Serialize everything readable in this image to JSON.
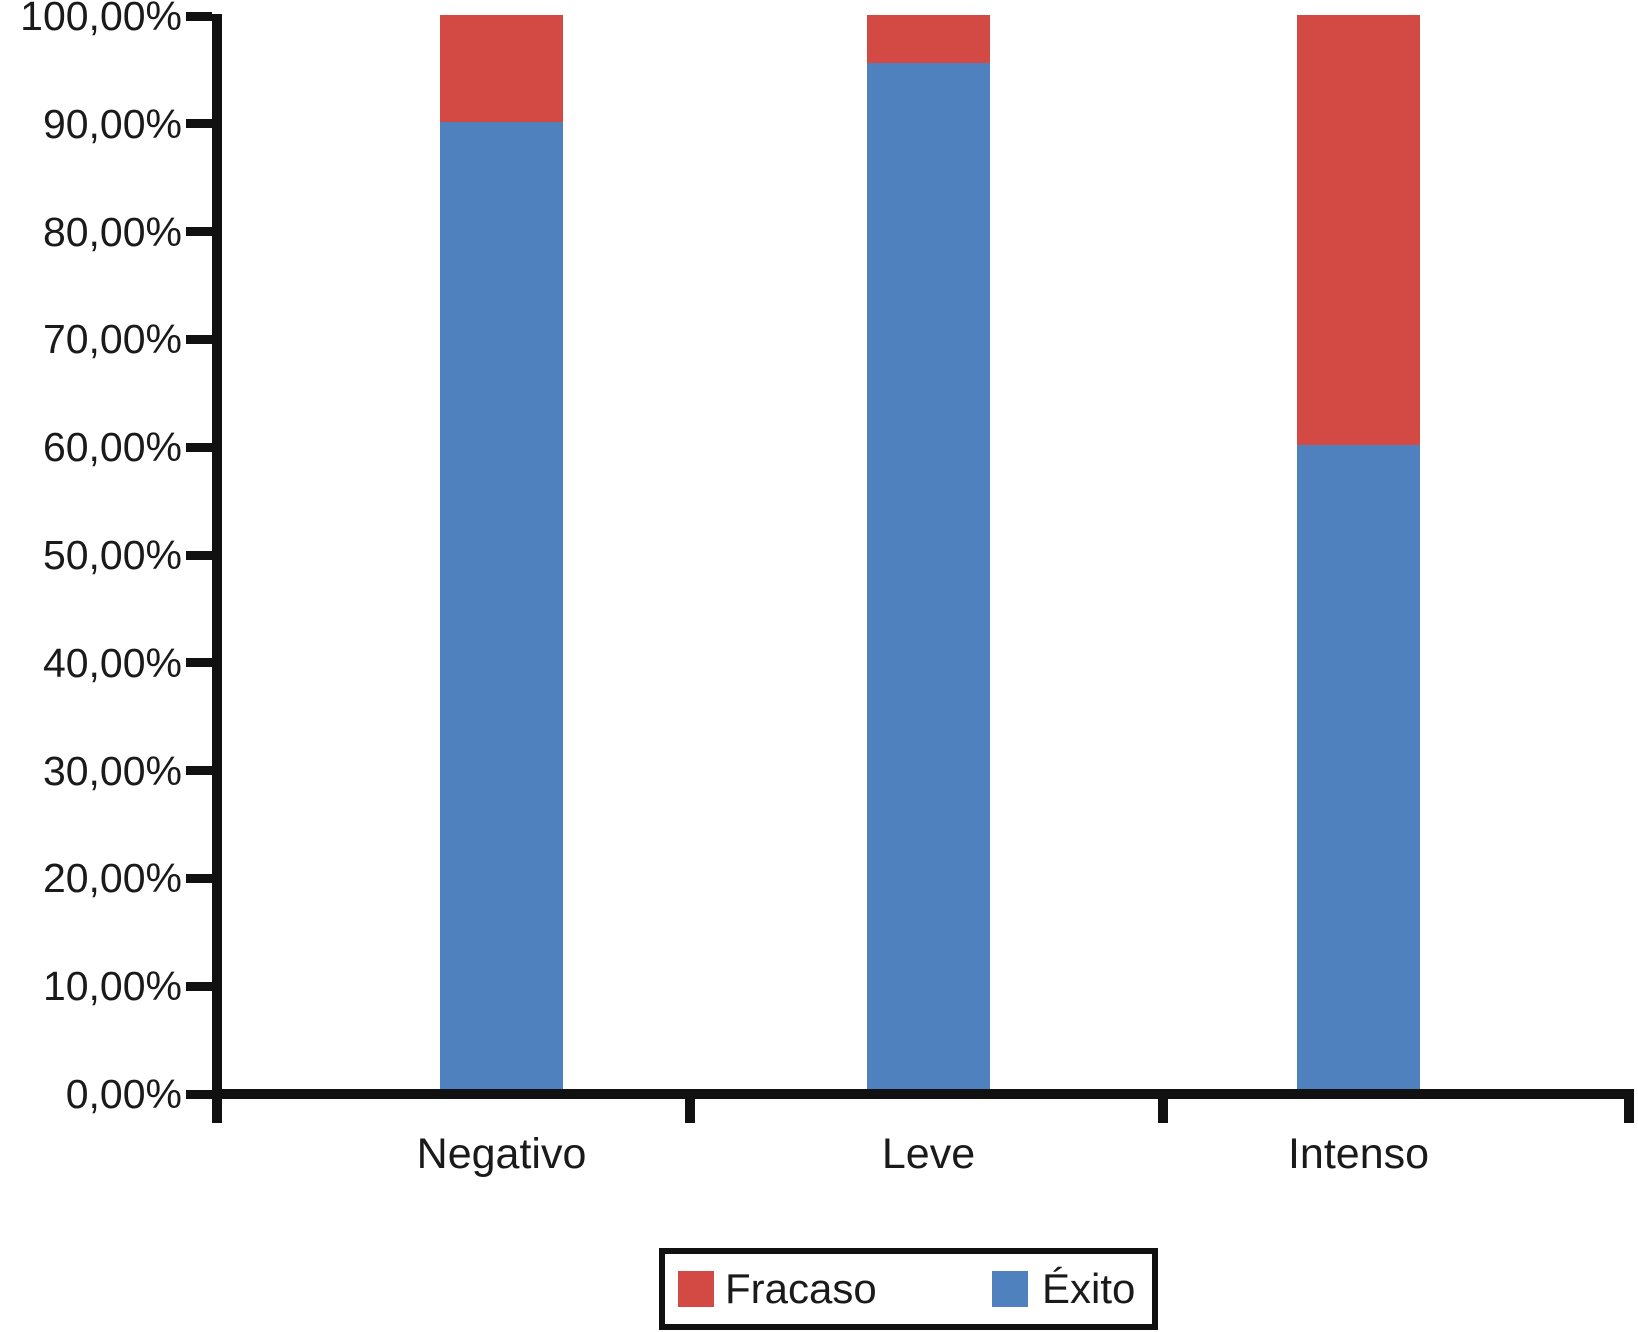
{
  "chart_data": {
    "type": "bar",
    "stacked": true,
    "title": "",
    "xlabel": "",
    "ylabel": "",
    "categories": [
      "Negativo",
      "Leve",
      "Intenso"
    ],
    "series": [
      {
        "name": "Éxito",
        "color": "#4E81BE",
        "values": [
          90.0,
          95.5,
          60.0
        ]
      },
      {
        "name": "Fracaso",
        "color": "#D24A43",
        "values": [
          10.0,
          4.5,
          40.0
        ]
      }
    ],
    "y_axis": {
      "min": 0,
      "max": 100,
      "step": 10,
      "unit": "%",
      "tick_labels": [
        "0,00%",
        "10,00%",
        "20,00%",
        "30,00%",
        "40,00%",
        "50,00%",
        "60,00%",
        "70,00%",
        "80,00%",
        "90,00%",
        "100,00%"
      ]
    },
    "x_axis": {
      "tick_labels": [
        "Negativo",
        "Leve",
        "Intenso"
      ]
    },
    "legend": {
      "position": "bottom",
      "border": true,
      "entries": [
        {
          "label": "Fracaso",
          "color": "#D24A43"
        },
        {
          "label": "Éxito",
          "color": "#4E81BE"
        }
      ]
    },
    "grid": "off",
    "axis_color": "#111111",
    "background_color": "#FFFFFF"
  }
}
